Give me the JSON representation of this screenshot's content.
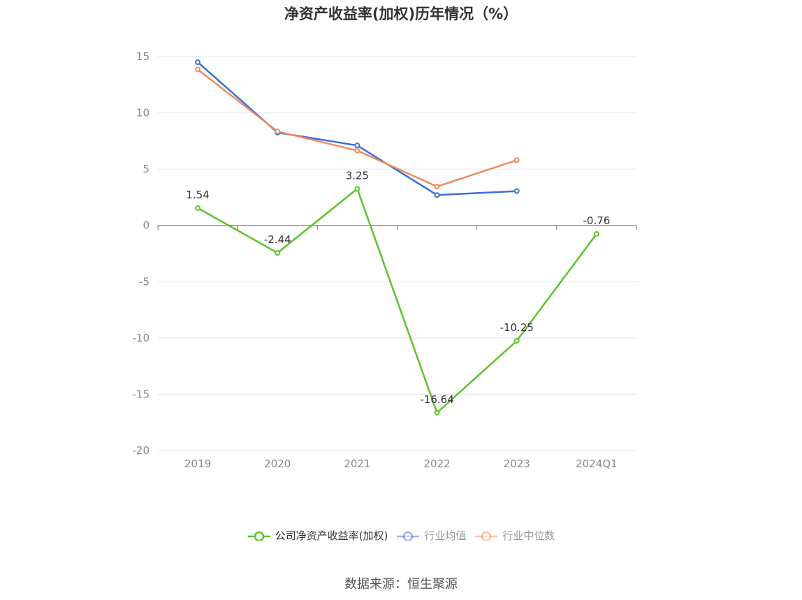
{
  "chart_data": {
    "type": "line",
    "title": "净资产收益率(加权)历年情况（%）",
    "categories": [
      "2019",
      "2020",
      "2021",
      "2022",
      "2023",
      "2024Q1"
    ],
    "ylim": [
      -20,
      15
    ],
    "yticks": [
      15,
      10,
      5,
      0,
      -5,
      -10,
      -15,
      -20
    ],
    "grid": true,
    "legend_position": "bottom",
    "series": [
      {
        "name": "公司净资产收益率(加权)",
        "color": "#5ac42d",
        "values": [
          1.54,
          -2.44,
          3.25,
          -16.64,
          -10.25,
          -0.76
        ],
        "labels": [
          "1.54",
          "-2.44",
          "3.25",
          "-16.64",
          "-10.25",
          "-0.76"
        ],
        "legend_active": true
      },
      {
        "name": "行业均值",
        "color": "#3a6fd8",
        "values": [
          14.5,
          8.25,
          7.1,
          2.7,
          3.05,
          null
        ],
        "legend_active": false
      },
      {
        "name": "行业中位数",
        "color": "#f08a5d",
        "values": [
          13.85,
          8.35,
          6.65,
          3.45,
          5.8,
          null
        ],
        "legend_active": false
      }
    ]
  },
  "source": "数据来源：恒生聚源"
}
